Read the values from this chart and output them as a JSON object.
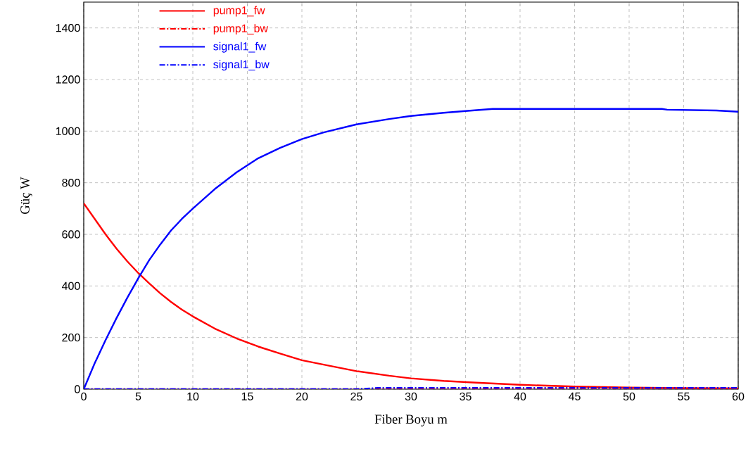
{
  "chart_data": {
    "type": "line",
    "xlabel": "Fiber Boyu m",
    "ylabel": "Güç W",
    "xlim": [
      0,
      60
    ],
    "ylim": [
      0,
      1500
    ],
    "xticks": [
      0,
      5,
      10,
      15,
      20,
      25,
      30,
      35,
      40,
      45,
      50,
      55,
      60
    ],
    "yticks": [
      0,
      200,
      400,
      600,
      800,
      1000,
      1200,
      1400
    ],
    "grid": true,
    "legend": "top left",
    "marker": "none",
    "series": [
      {
        "name": "pump1_fw",
        "color": "#ff0000",
        "line_style": "solid",
        "x": [
          0,
          1,
          2,
          3,
          4,
          5,
          6,
          7,
          8,
          9,
          10,
          12,
          14,
          16,
          18,
          20,
          22,
          25,
          28,
          30,
          33,
          36,
          40,
          45,
          50,
          55,
          60
        ],
        "values": [
          720,
          660,
          600,
          545,
          495,
          450,
          410,
          372,
          338,
          308,
          282,
          235,
          197,
          165,
          138,
          112,
          95,
          70,
          52,
          42,
          32,
          25,
          17,
          10,
          6,
          4,
          3
        ]
      },
      {
        "name": "pump1_bw",
        "color": "#ff0000",
        "line_style": "dashdot",
        "x": [
          0,
          40,
          50,
          60
        ],
        "values": [
          0,
          0,
          2,
          3
        ]
      },
      {
        "name": "signal1_fw",
        "color": "#0000ff",
        "line_style": "solid",
        "x": [
          0,
          1,
          2,
          3,
          4,
          5,
          6,
          7,
          8,
          9,
          10,
          12,
          14,
          16,
          18,
          20,
          22,
          25,
          28,
          30,
          33,
          35,
          37.5,
          53,
          53.5,
          58,
          60
        ],
        "values": [
          0,
          100,
          190,
          275,
          355,
          430,
          500,
          560,
          615,
          660,
          700,
          775,
          840,
          895,
          935,
          969,
          995,
          1026,
          1047,
          1059,
          1071,
          1078,
          1086,
          1086,
          1083,
          1080,
          1075
        ]
      },
      {
        "name": "signal1_bw",
        "color": "#0000ff",
        "line_style": "dashdot",
        "x": [
          0,
          25,
          27,
          60
        ],
        "values": [
          0,
          0,
          5,
          5
        ]
      }
    ]
  }
}
